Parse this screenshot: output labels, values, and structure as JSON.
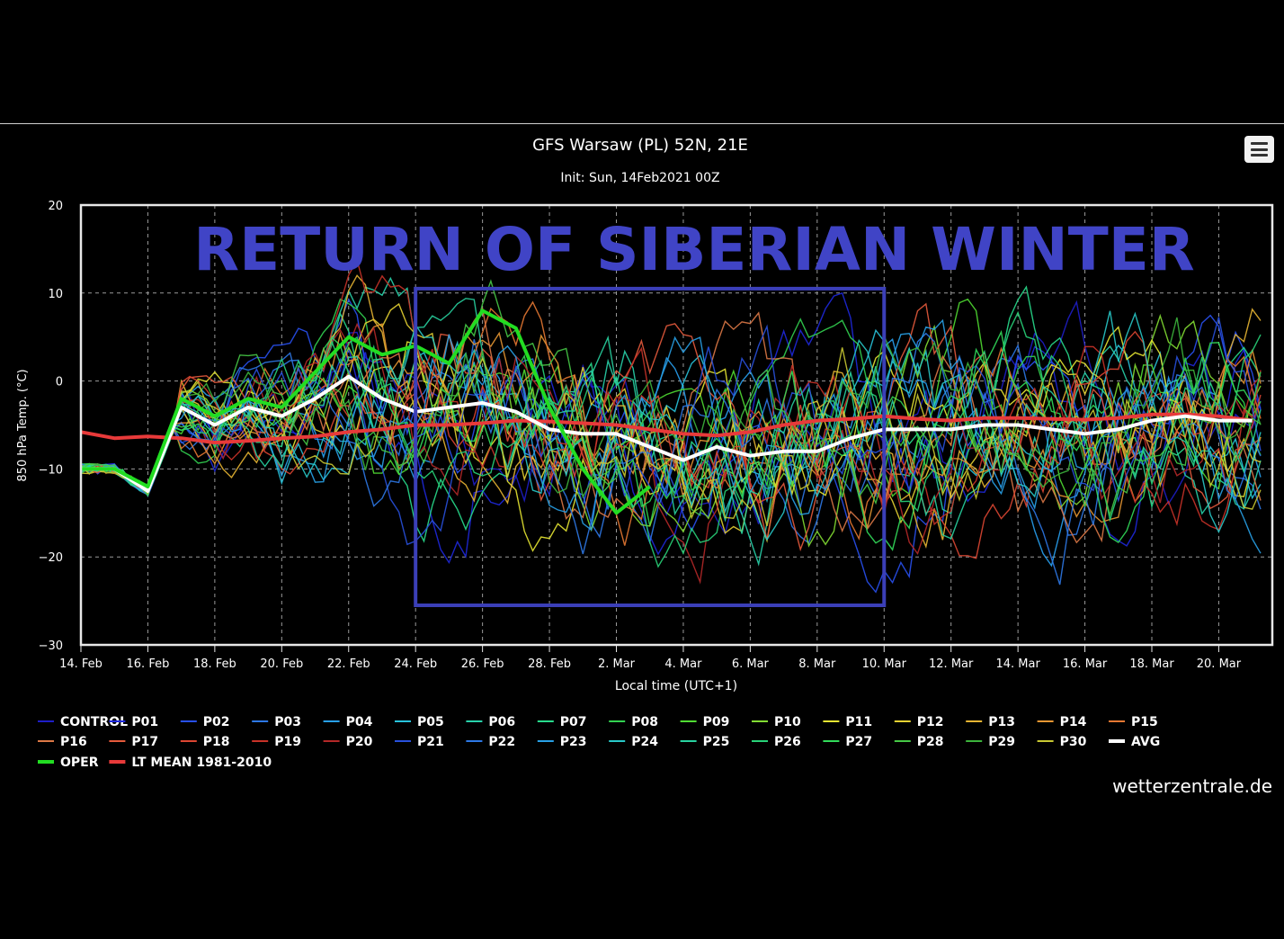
{
  "credit": "wetterzentrale.de",
  "colors": {
    "background": "#000000",
    "avg": "#ffffff",
    "oper": "#22dd22",
    "lt_mean": "#e83a3a",
    "box": "#3b3fb8",
    "overlay_text": "#4044c6"
  },
  "overlay_text": "RETURN OF SIBERIAN WINTER",
  "chart_data": {
    "type": "line",
    "title": "GFS Warsaw (PL) 52N, 21E",
    "subtitle": "Init: Sun, 14Feb2021 00Z",
    "xlabel": "Local time (UTC+1)",
    "ylabel": "850 hPa Temp. (°C)",
    "ylim": [
      -30,
      20
    ],
    "xlim": [
      "2021-02-14",
      "2021-03-21"
    ],
    "grid": true,
    "legend_position": "bottom",
    "yticks": [
      20,
      10,
      0,
      -10,
      -20,
      -30
    ],
    "xticks": [
      "14. Feb",
      "16. Feb",
      "18. Feb",
      "20. Feb",
      "22. Feb",
      "24. Feb",
      "26. Feb",
      "28. Feb",
      "2. Mar",
      "4. Mar",
      "6. Mar",
      "8. Mar",
      "10. Mar",
      "12. Mar",
      "14. Mar",
      "16. Mar",
      "18. Mar",
      "20. Mar"
    ],
    "highlight_box": {
      "x": [
        "2021-02-24",
        "2021-03-10"
      ],
      "y": [
        -25.5,
        10.5
      ]
    },
    "legend": [
      {
        "name": "CONTROL",
        "color": "#1e1ec8"
      },
      {
        "name": "P01",
        "color": "#1e28dc"
      },
      {
        "name": "P02",
        "color": "#2850f0"
      },
      {
        "name": "P03",
        "color": "#2d78e6"
      },
      {
        "name": "P04",
        "color": "#28a0f0"
      },
      {
        "name": "P05",
        "color": "#28c3dc"
      },
      {
        "name": "P06",
        "color": "#28d2aa"
      },
      {
        "name": "P07",
        "color": "#28dc8c"
      },
      {
        "name": "P08",
        "color": "#32d250"
      },
      {
        "name": "P09",
        "color": "#50dc32"
      },
      {
        "name": "P10",
        "color": "#82dc32"
      },
      {
        "name": "P11",
        "color": "#e6e632"
      },
      {
        "name": "P12",
        "color": "#e6d232"
      },
      {
        "name": "P13",
        "color": "#e6b432"
      },
      {
        "name": "P14",
        "color": "#e69632"
      },
      {
        "name": "P15",
        "color": "#e67832"
      },
      {
        "name": "P16",
        "color": "#dc7846"
      },
      {
        "name": "P17",
        "color": "#e65a3c"
      },
      {
        "name": "P18",
        "color": "#dc4632"
      },
      {
        "name": "P19",
        "color": "#c83228"
      },
      {
        "name": "P20",
        "color": "#b42828"
      },
      {
        "name": "P21",
        "color": "#2850dc"
      },
      {
        "name": "P22",
        "color": "#2d78e6"
      },
      {
        "name": "P23",
        "color": "#28a0e6"
      },
      {
        "name": "P24",
        "color": "#28c8c8"
      },
      {
        "name": "P25",
        "color": "#28d2a0"
      },
      {
        "name": "P26",
        "color": "#28d278"
      },
      {
        "name": "P27",
        "color": "#32dc5a"
      },
      {
        "name": "P28",
        "color": "#46c846"
      },
      {
        "name": "P29",
        "color": "#3cb43c"
      },
      {
        "name": "P30",
        "color": "#c8c832"
      },
      {
        "name": "AVG",
        "color": "#ffffff",
        "bold": true
      },
      {
        "name": "OPER",
        "color": "#22dd22",
        "bold": true
      },
      {
        "name": "LT MEAN 1981-2010",
        "color": "#e83a3a",
        "bold": true
      }
    ],
    "series": [
      {
        "name": "OPER",
        "color": "#22dd22",
        "width": 4,
        "x": [
          "2021-02-14",
          "2021-02-15",
          "2021-02-16",
          "2021-02-17",
          "2021-02-18",
          "2021-02-19",
          "2021-02-20",
          "2021-02-21",
          "2021-02-22",
          "2021-02-23",
          "2021-02-24",
          "2021-02-25",
          "2021-02-26",
          "2021-02-27",
          "2021-02-28",
          "2021-03-01",
          "2021-03-02",
          "2021-03-03"
        ],
        "y": [
          -10,
          -10,
          -12,
          -2,
          -4,
          -2,
          -3,
          1,
          5,
          3,
          4,
          2,
          8,
          6,
          -3,
          -10,
          -15,
          -12
        ]
      },
      {
        "name": "AVG",
        "color": "#ffffff",
        "width": 4,
        "x": [
          "2021-02-14",
          "2021-02-15",
          "2021-02-16",
          "2021-02-17",
          "2021-02-18",
          "2021-02-19",
          "2021-02-20",
          "2021-02-21",
          "2021-02-22",
          "2021-02-23",
          "2021-02-24",
          "2021-02-25",
          "2021-02-26",
          "2021-02-27",
          "2021-02-28",
          "2021-03-01",
          "2021-03-02",
          "2021-03-03",
          "2021-03-04",
          "2021-03-05",
          "2021-03-06",
          "2021-03-07",
          "2021-03-08",
          "2021-03-09",
          "2021-03-10",
          "2021-03-11",
          "2021-03-12",
          "2021-03-13",
          "2021-03-14",
          "2021-03-15",
          "2021-03-16",
          "2021-03-17",
          "2021-03-18",
          "2021-03-19",
          "2021-03-20",
          "2021-03-21"
        ],
        "y": [
          -10,
          -10,
          -12.5,
          -3,
          -5,
          -3,
          -4,
          -2,
          0.5,
          -2,
          -3.5,
          -3,
          -2.5,
          -3.5,
          -5.5,
          -6,
          -6,
          -7.5,
          -9,
          -7.5,
          -8.5,
          -8,
          -8,
          -6.5,
          -5.5,
          -5.5,
          -5.5,
          -5,
          -5,
          -5.5,
          -6,
          -5.5,
          -4.5,
          -4,
          -4.5,
          -4.5
        ]
      },
      {
        "name": "LT MEAN 1981-2010",
        "color": "#e83a3a",
        "width": 4,
        "x": [
          "2021-02-14",
          "2021-02-15",
          "2021-02-16",
          "2021-02-17",
          "2021-02-18",
          "2021-02-19",
          "2021-02-20",
          "2021-02-21",
          "2021-02-22",
          "2021-02-23",
          "2021-02-24",
          "2021-02-25",
          "2021-02-26",
          "2021-02-27",
          "2021-02-28",
          "2021-03-01",
          "2021-03-02",
          "2021-03-03",
          "2021-03-04",
          "2021-03-05",
          "2021-03-06",
          "2021-03-07",
          "2021-03-08",
          "2021-03-09",
          "2021-03-10",
          "2021-03-11",
          "2021-03-12",
          "2021-03-13",
          "2021-03-14",
          "2021-03-15",
          "2021-03-16",
          "2021-03-17",
          "2021-03-18",
          "2021-03-19",
          "2021-03-20",
          "2021-03-21"
        ],
        "y": [
          -5.8,
          -6.5,
          -6.3,
          -6.5,
          -7,
          -6.8,
          -6.5,
          -6.3,
          -5.8,
          -5.5,
          -5,
          -5,
          -4.8,
          -4.5,
          -4.6,
          -4.8,
          -5,
          -5.5,
          -6,
          -6.2,
          -5.8,
          -5,
          -4.5,
          -4.3,
          -4,
          -4.3,
          -4.5,
          -4.2,
          -4.2,
          -4.3,
          -4.4,
          -4.2,
          -3.8,
          -3.8,
          -4,
          -4.5
        ]
      }
    ]
  }
}
